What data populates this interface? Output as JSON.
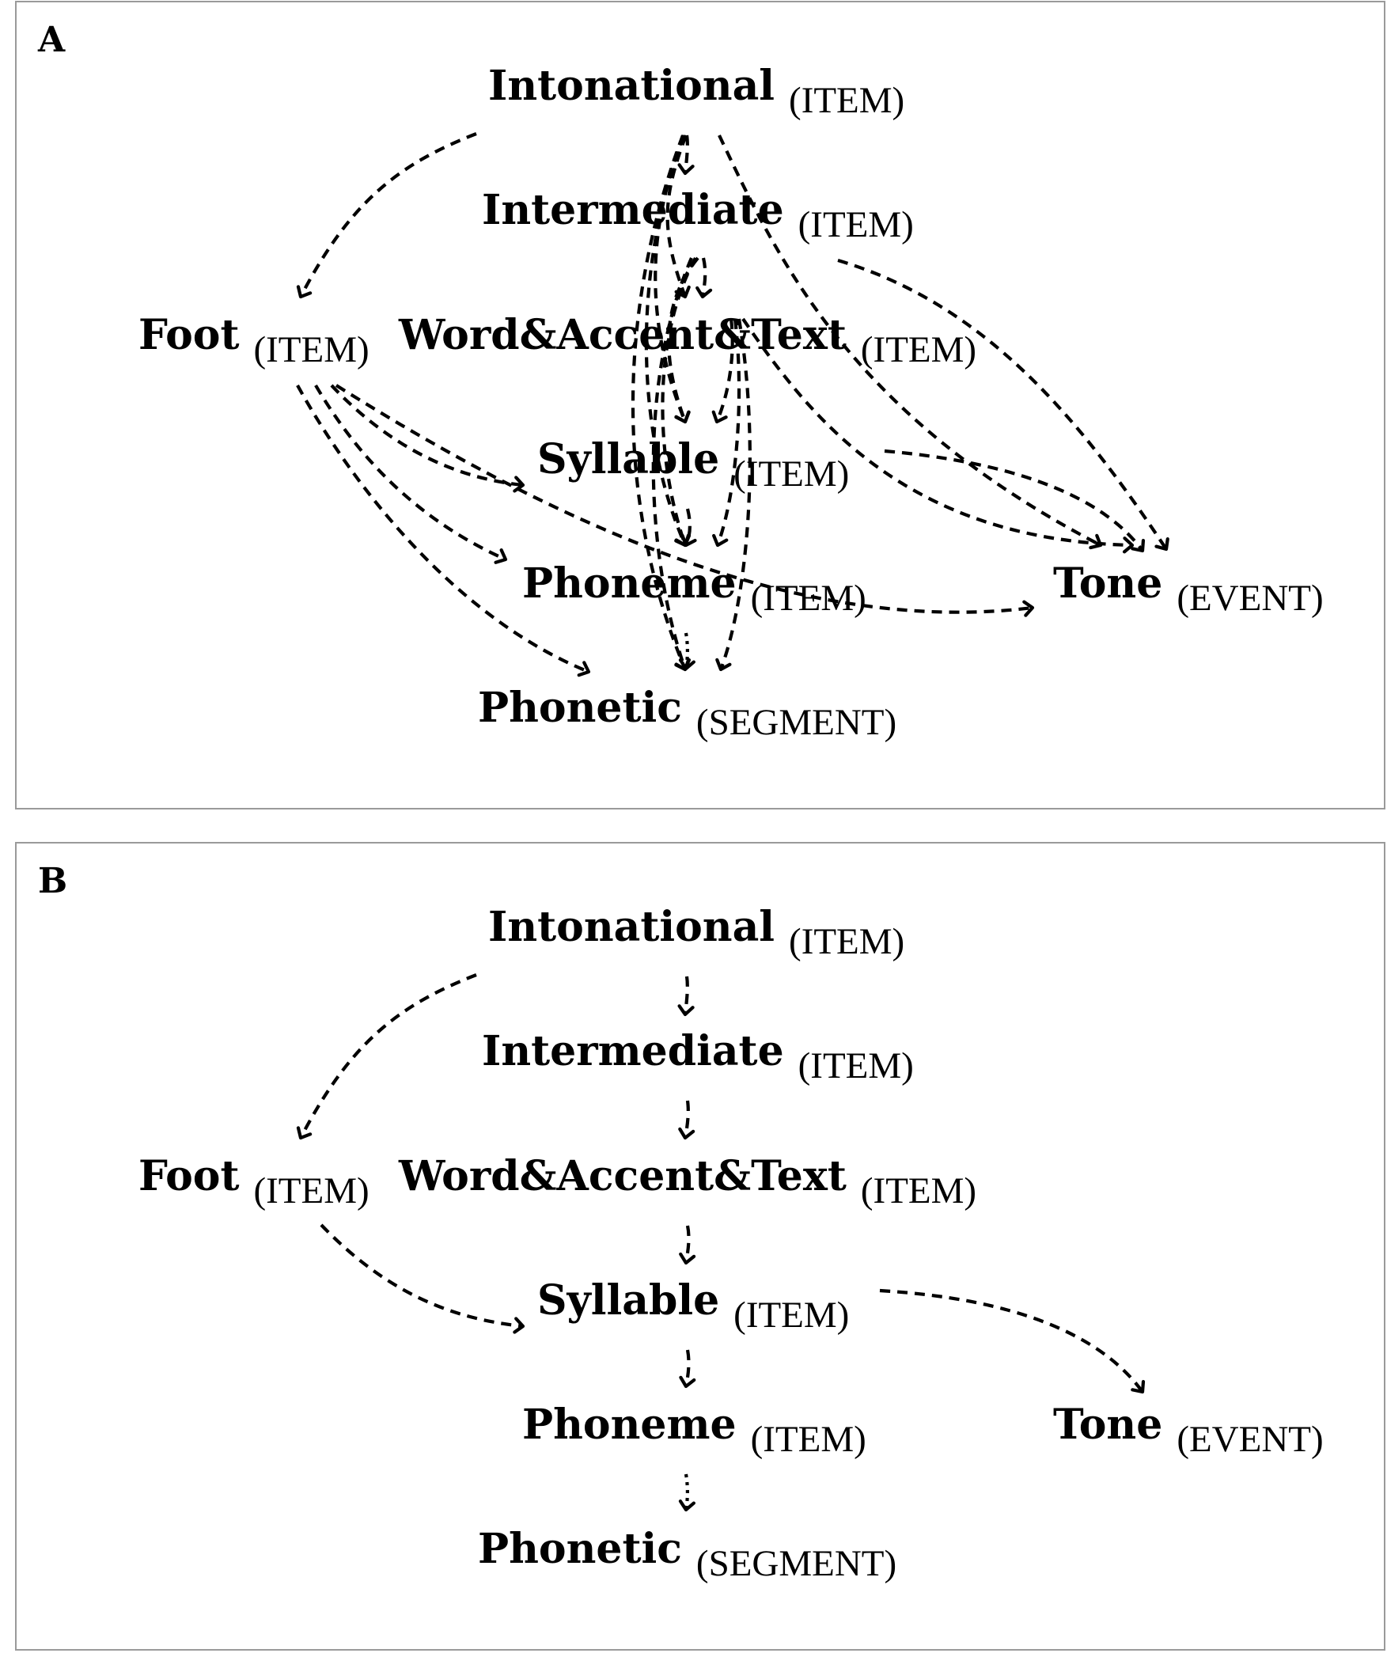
{
  "panel_a": {
    "label": "A",
    "nodes": {
      "intonational": {
        "name": "Intonational",
        "type": "(ITEM)"
      },
      "intermediate": {
        "name": "Intermediate",
        "type": "(ITEM)"
      },
      "foot": {
        "name": "Foot",
        "type": "(ITEM)"
      },
      "word": {
        "name": "Word&Accent&Text",
        "type": "(ITEM)"
      },
      "syllable": {
        "name": "Syllable",
        "type": "(ITEM)"
      },
      "phoneme": {
        "name": "Phoneme",
        "type": "(ITEM)"
      },
      "tone": {
        "name": "Tone",
        "type": "(EVENT)"
      },
      "phonetic": {
        "name": "Phonetic",
        "type": "(SEGMENT)"
      }
    },
    "edges": [
      {
        "from": "intonational",
        "to": "foot",
        "style": "dashed"
      },
      {
        "from": "intonational",
        "to": "intermediate",
        "style": "dashed"
      },
      {
        "from": "intonational",
        "to": "word",
        "style": "dashed"
      },
      {
        "from": "intonational",
        "to": "syllable",
        "style": "dashed"
      },
      {
        "from": "intonational",
        "to": "phoneme",
        "style": "dashed"
      },
      {
        "from": "intonational",
        "to": "phonetic",
        "style": "dashed"
      },
      {
        "from": "intonational",
        "to": "tone",
        "style": "dashed"
      },
      {
        "from": "intermediate",
        "to": "word",
        "style": "dashed"
      },
      {
        "from": "intermediate",
        "to": "syllable",
        "style": "dashed"
      },
      {
        "from": "intermediate",
        "to": "phoneme",
        "style": "dashed"
      },
      {
        "from": "intermediate",
        "to": "phonetic",
        "style": "dashed"
      },
      {
        "from": "intermediate",
        "to": "tone",
        "style": "dashed"
      },
      {
        "from": "word",
        "to": "syllable",
        "style": "dashed"
      },
      {
        "from": "word",
        "to": "phoneme",
        "style": "dashed"
      },
      {
        "from": "word",
        "to": "phonetic",
        "style": "dashed"
      },
      {
        "from": "word",
        "to": "tone",
        "style": "dashed"
      },
      {
        "from": "foot",
        "to": "syllable",
        "style": "dashed"
      },
      {
        "from": "foot",
        "to": "phoneme",
        "style": "dashed"
      },
      {
        "from": "foot",
        "to": "phonetic",
        "style": "dashed"
      },
      {
        "from": "foot",
        "to": "tone",
        "style": "dashed"
      },
      {
        "from": "syllable",
        "to": "phoneme",
        "style": "dashed"
      },
      {
        "from": "syllable",
        "to": "tone",
        "style": "dashed"
      },
      {
        "from": "phoneme",
        "to": "phonetic",
        "style": "dotted"
      }
    ]
  },
  "panel_b": {
    "label": "B",
    "nodes": {
      "intonational": {
        "name": "Intonational",
        "type": "(ITEM)"
      },
      "intermediate": {
        "name": "Intermediate",
        "type": "(ITEM)"
      },
      "foot": {
        "name": "Foot",
        "type": "(ITEM)"
      },
      "word": {
        "name": "Word&Accent&Text",
        "type": "(ITEM)"
      },
      "syllable": {
        "name": "Syllable",
        "type": "(ITEM)"
      },
      "phoneme": {
        "name": "Phoneme",
        "type": "(ITEM)"
      },
      "tone": {
        "name": "Tone",
        "type": "(EVENT)"
      },
      "phonetic": {
        "name": "Phonetic",
        "type": "(SEGMENT)"
      }
    },
    "edges": [
      {
        "from": "intonational",
        "to": "foot",
        "style": "dashed"
      },
      {
        "from": "intonational",
        "to": "intermediate",
        "style": "dashed"
      },
      {
        "from": "intermediate",
        "to": "word",
        "style": "dashed"
      },
      {
        "from": "word",
        "to": "syllable",
        "style": "dashed"
      },
      {
        "from": "foot",
        "to": "syllable",
        "style": "dashed"
      },
      {
        "from": "syllable",
        "to": "phoneme",
        "style": "dashed"
      },
      {
        "from": "syllable",
        "to": "tone",
        "style": "dashed"
      },
      {
        "from": "phoneme",
        "to": "phonetic",
        "style": "dotted"
      }
    ]
  }
}
